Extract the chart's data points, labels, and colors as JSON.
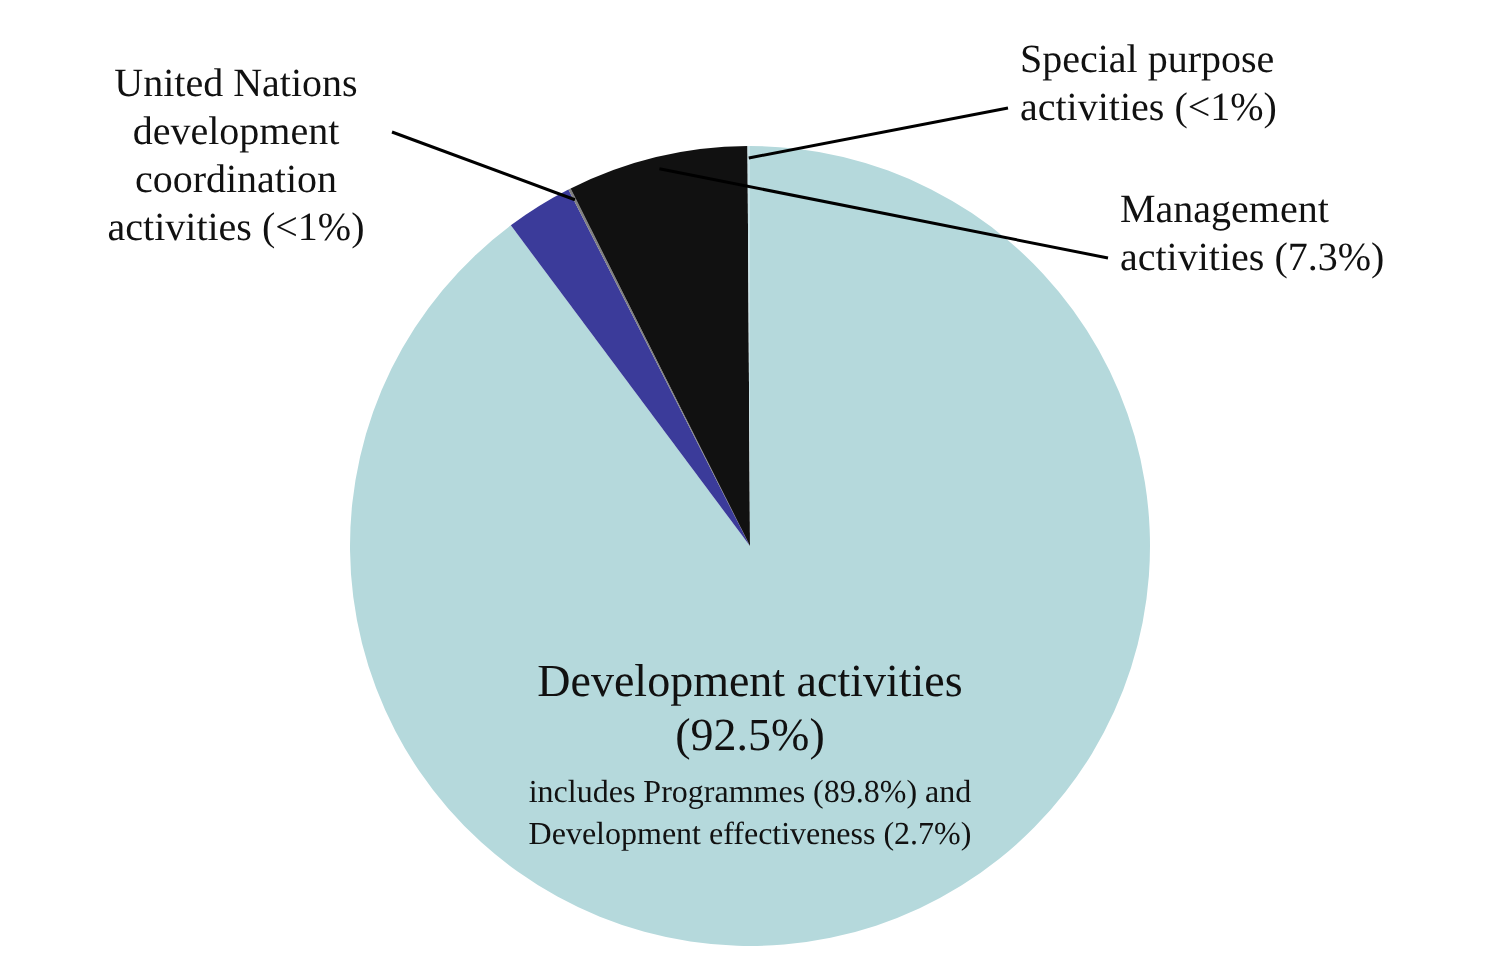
{
  "chart_data": {
    "type": "pie",
    "categories": [
      "Development activities (92.5%)",
      null,
      "United Nations development coordination activities (<1%)",
      "Management activities (7.3%)",
      "Special purpose activities (<1%)"
    ],
    "values": [
      89.8,
      2.7,
      0.1,
      7.3,
      0.1
    ],
    "colors": [
      "#b5d9dc",
      "#3b3b9a",
      "#808080",
      "#111111",
      "#c8e4e8"
    ],
    "annotations": [
      "includes Programmes (89.8%) and Development effectiveness (2.7%)"
    ]
  }
}
